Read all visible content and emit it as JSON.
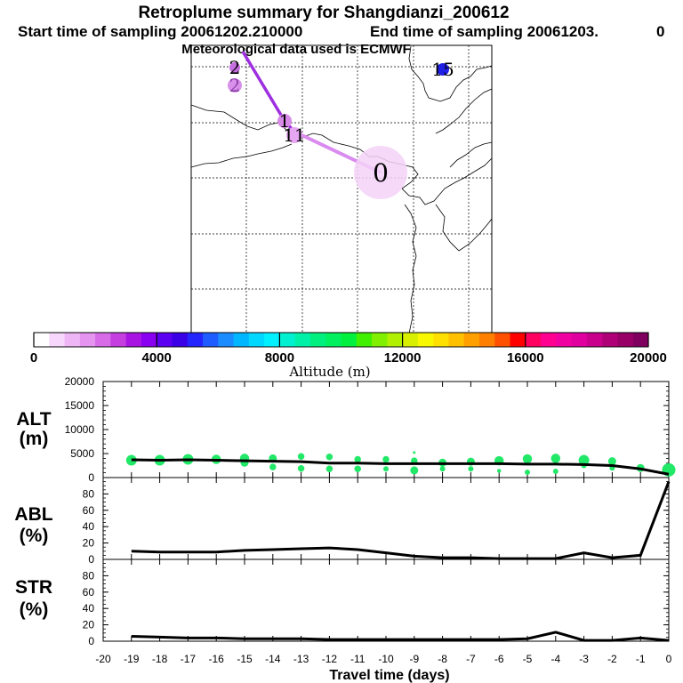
{
  "header": {
    "title": "Retroplume summary for Shangdianzi_200612",
    "start_time": "Start time of sampling 20061202.210000",
    "end_time": "End time of sampling 20061203.",
    "end_suffix": "0",
    "met_data": "Meteorological data used is ECMWF"
  },
  "map": {
    "trajectory_labels": [
      {
        "text": "0",
        "label_color": "#000000",
        "circle_color": "#f4d2f8"
      },
      {
        "text": "11",
        "label_color": "#000000",
        "circle_color": "#e6a6f2"
      },
      {
        "text": "1",
        "label_color": "#000000",
        "circle_color": "#d88ae8"
      },
      {
        "text": "2",
        "label_color": "#000000",
        "circle_color": "#c66ee0"
      },
      {
        "text": "2",
        "label_color": "#8a3fa8",
        "circle_color": "#d890ea"
      },
      {
        "text": "15",
        "label_color": "#000000",
        "circle_color": "#1f1fe6"
      }
    ],
    "line_color_main": "#9e2fe0",
    "line_color_light": "#d98bef"
  },
  "colorbar": {
    "title": "Altitude (m)",
    "ticks": [
      "0",
      "4000",
      "8000",
      "12000",
      "16000",
      "20000"
    ],
    "colors": [
      "#ffffff",
      "#f7d7fb",
      "#efb6f6",
      "#e594f0",
      "#d76be8",
      "#c43ee0",
      "#a815e3",
      "#8a00f0",
      "#5b00f0",
      "#3a00e6",
      "#2424ff",
      "#1f5cff",
      "#1a8cff",
      "#00b7ff",
      "#00d8ff",
      "#00f0ff",
      "#00f0d0",
      "#00f0a8",
      "#00f080",
      "#00f060",
      "#00f040",
      "#40f000",
      "#80f000",
      "#b0f000",
      "#d8f000",
      "#f8f800",
      "#ffe000",
      "#ffc000",
      "#ffa000",
      "#ff8000",
      "#ff5000",
      "#ff0000",
      "#ff0060",
      "#ff0090",
      "#f000a0",
      "#e000a0",
      "#c8008c",
      "#b00078",
      "#980068",
      "#800060"
    ]
  },
  "chart_data": [
    {
      "type": "scatter",
      "name": "ALT",
      "panel_label": [
        "ALT",
        "(m)"
      ],
      "ylim": [
        0,
        20000
      ],
      "y_ticks": [
        "0",
        "5000",
        "10000",
        "15000",
        "20000"
      ],
      "x": [
        -19,
        -18,
        -17,
        -16,
        -15,
        -14,
        -13,
        -12,
        -11,
        -10,
        -9,
        -8,
        -7,
        -6,
        -5,
        -4,
        -3,
        -2,
        -1,
        0
      ],
      "mean_line": [
        3700,
        3600,
        3700,
        3600,
        3500,
        3400,
        3300,
        3000,
        3000,
        2900,
        2900,
        2900,
        2900,
        2900,
        2800,
        2800,
        2700,
        2500,
        1800,
        700
      ],
      "point_color": "#22e868",
      "points": [
        {
          "x": -19,
          "y": 3600,
          "s": 8
        },
        {
          "x": -18,
          "y": 3600,
          "s": 8
        },
        {
          "x": -17,
          "y": 3800,
          "s": 8
        },
        {
          "x": -16,
          "y": 3800,
          "s": 7
        },
        {
          "x": -15,
          "y": 4000,
          "s": 7
        },
        {
          "x": -15,
          "y": 3100,
          "s": 6
        },
        {
          "x": -14,
          "y": 4000,
          "s": 6
        },
        {
          "x": -14,
          "y": 2200,
          "s": 5
        },
        {
          "x": -13,
          "y": 4400,
          "s": 5
        },
        {
          "x": -13,
          "y": 1900,
          "s": 5
        },
        {
          "x": -12,
          "y": 4300,
          "s": 5
        },
        {
          "x": -12,
          "y": 1800,
          "s": 5
        },
        {
          "x": -11,
          "y": 3800,
          "s": 5
        },
        {
          "x": -11,
          "y": 1800,
          "s": 5
        },
        {
          "x": -10,
          "y": 3800,
          "s": 5
        },
        {
          "x": -10,
          "y": 1800,
          "s": 4
        },
        {
          "x": -9,
          "y": 3500,
          "s": 5
        },
        {
          "x": -9,
          "y": 1500,
          "s": 6
        },
        {
          "x": -9,
          "y": 5200,
          "s": 2
        },
        {
          "x": -8,
          "y": 3100,
          "s": 6
        },
        {
          "x": -8,
          "y": 1800,
          "s": 4
        },
        {
          "x": -7,
          "y": 3300,
          "s": 6
        },
        {
          "x": -7,
          "y": 1800,
          "s": 4
        },
        {
          "x": -6,
          "y": 3500,
          "s": 7
        },
        {
          "x": -6,
          "y": 1400,
          "s": 3
        },
        {
          "x": -5,
          "y": 3900,
          "s": 7
        },
        {
          "x": -5,
          "y": 1100,
          "s": 4
        },
        {
          "x": -4,
          "y": 4000,
          "s": 7
        },
        {
          "x": -4,
          "y": 1300,
          "s": 4
        },
        {
          "x": -3,
          "y": 3600,
          "s": 8
        },
        {
          "x": -3,
          "y": 2500,
          "s": 4
        },
        {
          "x": -2,
          "y": 3400,
          "s": 6
        },
        {
          "x": -2,
          "y": 2000,
          "s": 4
        },
        {
          "x": -1,
          "y": 2000,
          "s": 6
        },
        {
          "x": 0,
          "y": 1600,
          "s": 10
        }
      ]
    },
    {
      "type": "line",
      "name": "ABL",
      "panel_label": [
        "ABL",
        "(%)"
      ],
      "ylim": [
        0,
        100
      ],
      "y_ticks": [
        "0",
        "20",
        "40",
        "60",
        "80"
      ],
      "x": [
        -19,
        -18,
        -17,
        -16,
        -15,
        -14,
        -13,
        -12,
        -11,
        -10,
        -9,
        -8,
        -7,
        -6,
        -5,
        -4,
        -3,
        -2,
        -1,
        0
      ],
      "values": [
        10,
        9,
        9,
        9,
        11,
        12,
        13,
        14,
        12,
        8,
        4,
        2,
        2,
        1,
        1,
        1,
        8,
        2,
        5,
        95
      ]
    },
    {
      "type": "line",
      "name": "STR",
      "panel_label": [
        "STR",
        "(%)"
      ],
      "ylim": [
        0,
        100
      ],
      "y_ticks": [
        "0",
        "20",
        "40",
        "60",
        "80"
      ],
      "x": [
        -19,
        -18,
        -17,
        -16,
        -15,
        -14,
        -13,
        -12,
        -11,
        -10,
        -9,
        -8,
        -7,
        -6,
        -5,
        -4,
        -3,
        -2,
        -1,
        0
      ],
      "values": [
        6,
        5,
        4,
        4,
        3,
        3,
        3,
        2,
        2,
        2,
        2,
        2,
        2,
        2,
        3,
        11,
        1,
        1,
        4,
        1
      ]
    }
  ],
  "x_axis": {
    "label": "Travel time (days)",
    "ticks": [
      "-20",
      "-19",
      "-18",
      "-17",
      "-16",
      "-15",
      "-14",
      "-13",
      "-12",
      "-11",
      "-10",
      "-9",
      "-8",
      "-7",
      "-6",
      "-5",
      "-4",
      "-3",
      "-2",
      "-1",
      "0"
    ]
  }
}
